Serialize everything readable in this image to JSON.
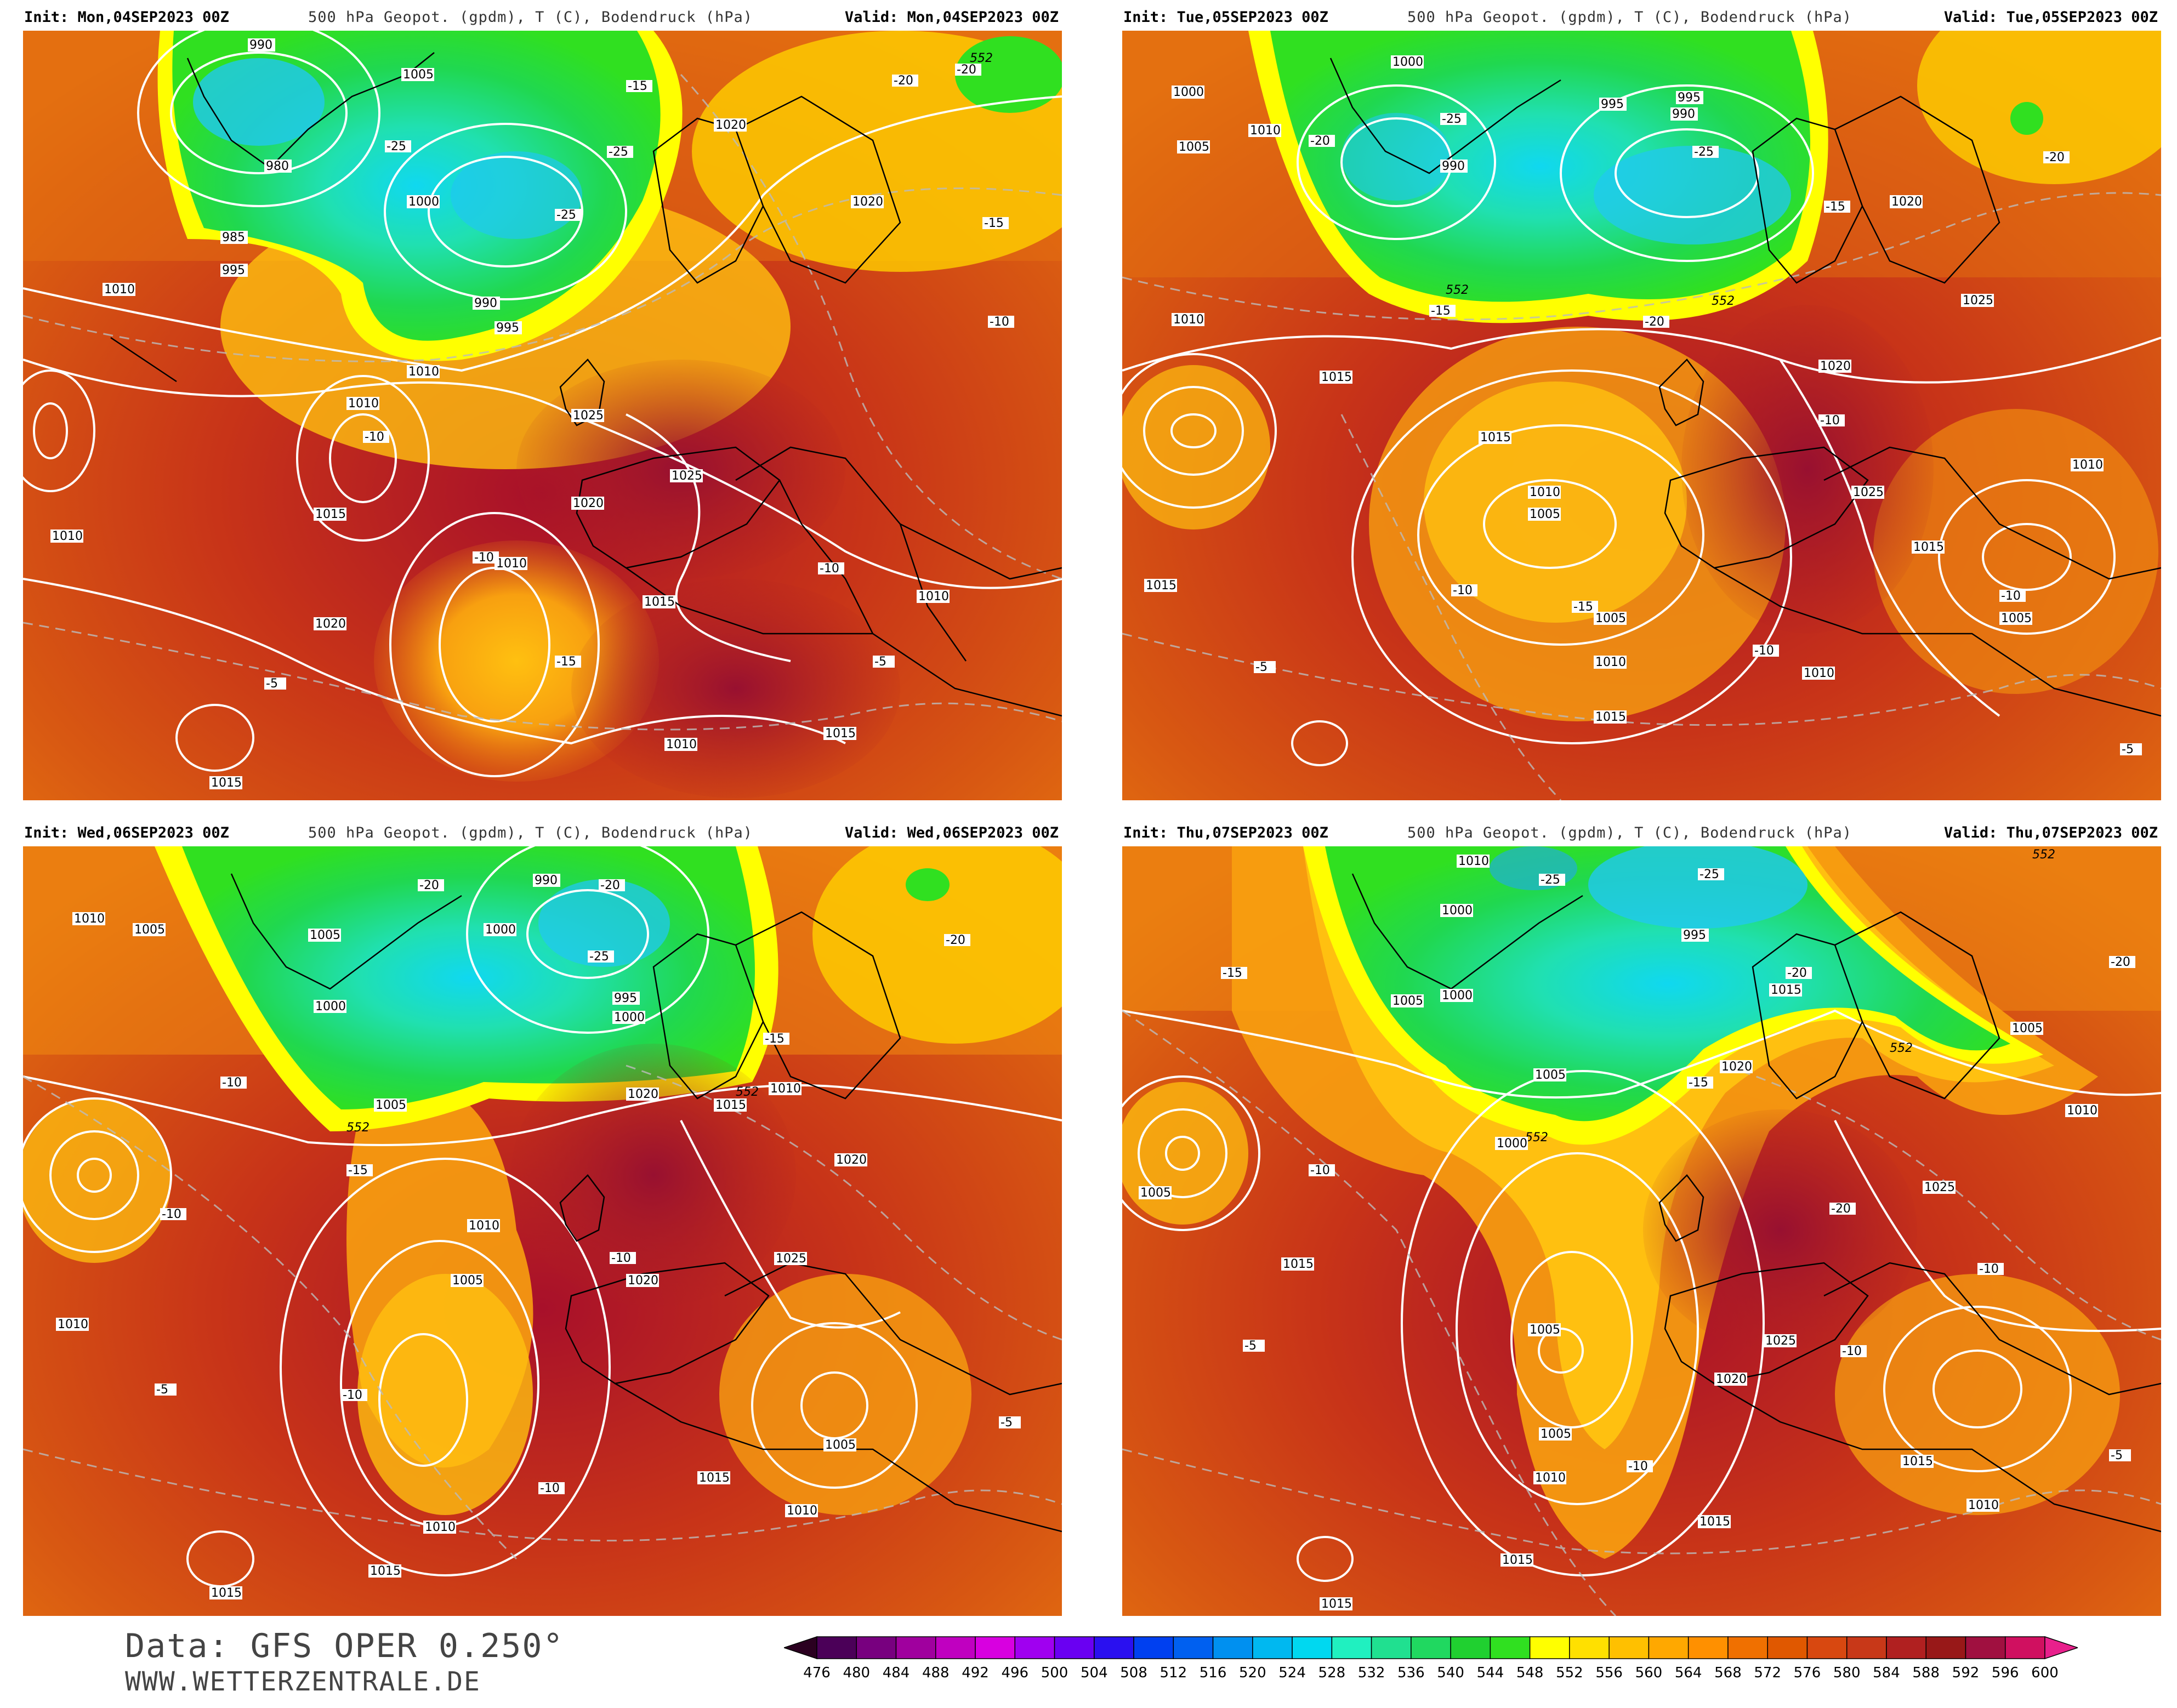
{
  "panels": [
    {
      "init": "Init: Mon,04SEP2023 00Z",
      "title": "500 hPa Geopot. (gpdm), T (C), Bodendruck (hPa)",
      "valid": "Valid: Mon,04SEP2023 00Z",
      "pressure_labels": [
        "990",
        "980",
        "985",
        "990",
        "995",
        "1000",
        "1005",
        "1010",
        "1015",
        "1020",
        "1025",
        "1015",
        "1020",
        "1010",
        "1005",
        "1000",
        "1010",
        "1015",
        "1020",
        "1010",
        "1015",
        "1025",
        "1020",
        "1010",
        "1015"
      ],
      "temp_labels": [
        "-25",
        "-25",
        "-25",
        "-20",
        "-15",
        "-15",
        "-10",
        "-10",
        "-10",
        "-5",
        "-5",
        "-10",
        "-15",
        "-20"
      ]
    },
    {
      "init": "Init: Tue,05SEP2023 00Z",
      "title": "500 hPa Geopot. (gpdm), T (C), Bodendruck (hPa)",
      "valid": "Valid: Tue,05SEP2023 00Z",
      "pressure_labels": [
        "1000",
        "990",
        "995",
        "1005",
        "1010",
        "1015",
        "1020",
        "1025",
        "1000",
        "1005",
        "1010",
        "1015",
        "1020",
        "1010",
        "1005",
        "1015",
        "1025",
        "1020",
        "1010",
        "1015"
      ],
      "temp_labels": [
        "-25",
        "-25",
        "-20",
        "-20",
        "-15",
        "-15",
        "-10",
        "-10",
        "-10",
        "-5",
        "-5",
        "-10",
        "-15",
        "-20"
      ]
    },
    {
      "init": "Init: Wed,06SEP2023 00Z",
      "title": "500 hPa Geopot. (gpdm), T (C), Bodendruck (hPa)",
      "valid": "Valid: Wed,06SEP2023 00Z",
      "pressure_labels": [
        "990",
        "995",
        "1000",
        "1005",
        "1010",
        "1015",
        "1020",
        "1025",
        "1005",
        "1010",
        "1015",
        "1020",
        "1010",
        "1005",
        "1015",
        "1020",
        "1010",
        "1005",
        "1015"
      ],
      "temp_labels": [
        "-25",
        "-20",
        "-20",
        "-15",
        "-15",
        "-10",
        "-10",
        "-10",
        "-5",
        "-5",
        "-10",
        "-15",
        "-20"
      ]
    },
    {
      "init": "Init: Thu,07SEP2023 00Z",
      "title": "500 hPa Geopot. (gpdm), T (C), Bodendruck (hPa)",
      "valid": "Valid: Thu,07SEP2023 00Z",
      "pressure_labels": [
        "995",
        "1000",
        "1005",
        "1010",
        "1015",
        "1020",
        "1025",
        "1005",
        "1010",
        "1015",
        "1020",
        "1010",
        "1005",
        "1015",
        "1025",
        "1020",
        "1010",
        "1015"
      ],
      "temp_labels": [
        "-25",
        "-25",
        "-20",
        "-20",
        "-15",
        "-15",
        "-10",
        "-10",
        "-10",
        "-5",
        "-5",
        "-10",
        "-15",
        "-20"
      ]
    }
  ],
  "contour_552": "552",
  "footer": {
    "source": "Data: GFS OPER 0.250°",
    "site": "WWW.WETTERZENTRALE.DE"
  },
  "colorbar": {
    "labels": [
      "476",
      "480",
      "484",
      "488",
      "492",
      "496",
      "500",
      "504",
      "508",
      "512",
      "516",
      "520",
      "524",
      "528",
      "532",
      "536",
      "540",
      "544",
      "548",
      "552",
      "556",
      "560",
      "564",
      "568",
      "572",
      "576",
      "580",
      "584",
      "588",
      "592",
      "596",
      "600"
    ],
    "colors": [
      "#2b0020",
      "#4b0058",
      "#78007f",
      "#a0009e",
      "#c000c0",
      "#d800e0",
      "#a000f0",
      "#6a00f2",
      "#2a10f0",
      "#0040f0",
      "#0060f0",
      "#0090f0",
      "#00b8f0",
      "#00d8f0",
      "#20f0c0",
      "#20e090",
      "#20d860",
      "#20d030",
      "#30e020",
      "#ffff00",
      "#ffe000",
      "#ffc000",
      "#ffa800",
      "#ff9000",
      "#f07000",
      "#e05800",
      "#d84810",
      "#c83818",
      "#b02020",
      "#981818",
      "#a01040",
      "#d01060",
      "#e8208c"
    ]
  }
}
